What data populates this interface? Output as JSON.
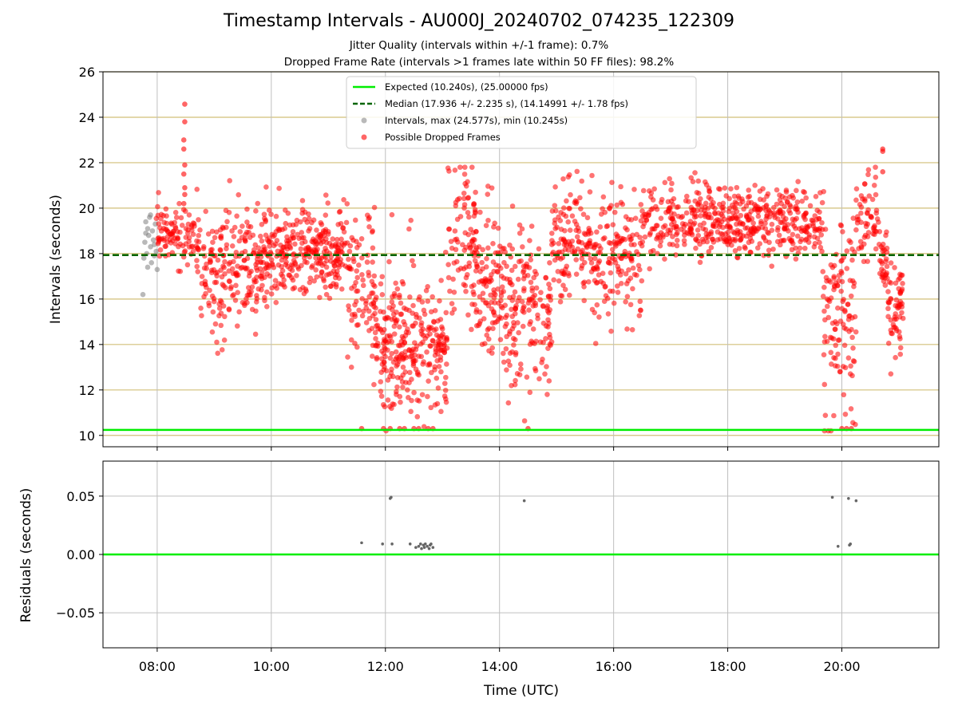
{
  "title": "Timestamp Intervals - AU000J_20240702_074235_122309",
  "subtitle_1": "Jitter Quality (intervals within +/-1 frame): 0.7%",
  "subtitle_2": "Dropped Frame Rate (intervals >1 frames late within 50 FF files): 98.2%",
  "colors": {
    "expected": "#00ee00",
    "median": "#006400",
    "intervals": "#808080",
    "dropped": "#ff0000",
    "hgrid_top": "#d2bf78",
    "grid": "#bfbfbf"
  },
  "chart_data": [
    {
      "type": "scatter",
      "panel": "top",
      "ylabel": "Intervals (seconds)",
      "xlabel": "",
      "ylim": [
        9.5,
        26
      ],
      "xlim": [
        "07:03",
        "21:42"
      ],
      "yticks": [
        "10",
        "12",
        "14",
        "16",
        "18",
        "20",
        "22",
        "24",
        "26"
      ],
      "grid": "horizontal (tan) and vertical (gray)",
      "legend_position": "top-center",
      "legend": [
        "Expected (10.240s), (25.00000 fps)",
        "Median (17.936 +/- 2.235 s), (14.14991 +/- 1.78 fps)",
        "Intervals, max (24.577s), min (10.245s)",
        "Possible Dropped Frames"
      ],
      "expected_y": 10.24,
      "median_y": 17.936,
      "series": [
        {
          "name": "Intervals, max (24.577s), min (10.245s)",
          "points": [
            [
              "07:45",
              16.2
            ],
            [
              "07:46",
              17.8
            ],
            [
              "07:47",
              18.5
            ],
            [
              "07:48",
              19.4
            ],
            [
              "07:49",
              18.0
            ],
            [
              "07:50",
              19.1
            ],
            [
              "07:50",
              17.4
            ],
            [
              "07:51",
              18.8
            ],
            [
              "07:52",
              19.6
            ],
            [
              "07:53",
              18.3
            ],
            [
              "07:54",
              17.6
            ],
            [
              "07:55",
              19.0
            ],
            [
              "07:56",
              18.6
            ],
            [
              "07:57",
              17.9
            ],
            [
              "07:58",
              19.3
            ],
            [
              "07:59",
              18.1
            ],
            [
              "08:00",
              17.3
            ],
            [
              "07:48",
              18.9
            ],
            [
              "07:53",
              19.7
            ],
            [
              "07:57",
              18.4
            ]
          ]
        },
        {
          "name": "Possible Dropped Frames",
          "segments": [
            {
              "t": [
                "07:58",
                "08:22"
              ],
              "mean": 19.0,
              "sd": 0.65,
              "n": 60
            },
            {
              "t": [
                "08:22",
                "08:45"
              ],
              "mean": 18.7,
              "sd": 0.8,
              "n": 50
            },
            {
              "t": [
                "08:45",
                "09:45"
              ],
              "mean": 17.2,
              "sd": 1.3,
              "n": 180
            },
            {
              "t": [
                "09:45",
                "11:20"
              ],
              "mean": 18.1,
              "sd": 1.0,
              "n": 330
            },
            {
              "t": [
                "11:20",
                "11:50"
              ],
              "mean": 16.3,
              "sd": 1.4,
              "n": 90
            },
            {
              "t": [
                "11:50",
                "12:40"
              ],
              "mean": 14.0,
              "sd": 1.6,
              "n": 200
            },
            {
              "t": [
                "12:40",
                "13:05"
              ],
              "mean": 13.8,
              "sd": 1.4,
              "n": 90
            },
            {
              "t": [
                "13:05",
                "13:35"
              ],
              "mean": 18.5,
              "sd": 2.0,
              "n": 90
            },
            {
              "t": [
                "13:35",
                "14:05"
              ],
              "mean": 16.6,
              "sd": 1.6,
              "n": 110
            },
            {
              "t": [
                "14:05",
                "14:55"
              ],
              "mean": 15.6,
              "sd": 1.7,
              "n": 160
            },
            {
              "t": [
                "14:55",
                "15:40"
              ],
              "mean": 18.5,
              "sd": 1.4,
              "n": 140
            },
            {
              "t": [
                "15:40",
                "16:30"
              ],
              "mean": 17.7,
              "sd": 1.5,
              "n": 140
            },
            {
              "t": [
                "16:30",
                "19:40"
              ],
              "mean": 19.4,
              "sd": 0.75,
              "n": 520
            },
            {
              "t": [
                "19:40",
                "20:15"
              ],
              "mean": 15.2,
              "sd": 2.2,
              "n": 120
            },
            {
              "t": [
                "20:15",
                "20:40"
              ],
              "mean": 19.5,
              "sd": 0.9,
              "n": 60
            },
            {
              "t": [
                "20:40",
                "20:48"
              ],
              "mean": 17.6,
              "sd": 0.6,
              "n": 30
            },
            {
              "t": [
                "20:48",
                "21:05"
              ],
              "mean": 15.5,
              "sd": 1.0,
              "n": 60
            }
          ],
          "spikes": [
            [
              "08:29",
              24.577
            ],
            [
              "08:29",
              23.8
            ],
            [
              "08:28",
              23.0
            ],
            [
              "08:28",
              22.6
            ],
            [
              "08:29",
              21.9
            ],
            [
              "08:28",
              21.5
            ],
            [
              "08:29",
              20.9
            ],
            [
              "08:29",
              20.6
            ],
            [
              "08:28",
              20.2
            ],
            [
              "12:15",
              10.3
            ],
            [
              "12:20",
              10.3
            ],
            [
              "12:30",
              10.3
            ],
            [
              "12:35",
              10.3
            ],
            [
              "12:45",
              10.3
            ],
            [
              "12:50",
              10.3
            ],
            [
              "12:05",
              10.3
            ],
            [
              "11:58",
              10.3
            ],
            [
              "20:00",
              10.3
            ],
            [
              "20:05",
              10.3
            ],
            [
              "20:10",
              10.3
            ],
            [
              "14:30",
              10.3
            ],
            [
              "11:35",
              10.3
            ],
            [
              "20:43",
              22.6
            ],
            [
              "20:43",
              22.5
            ],
            [
              "20:43",
              21.6
            ]
          ]
        }
      ]
    },
    {
      "type": "scatter",
      "panel": "bottom",
      "ylabel": "Residuals (seconds)",
      "xlabel": "Time (UTC)",
      "ylim": [
        -0.08,
        0.08
      ],
      "yticks": [
        "−0.05",
        "0.00",
        "0.05"
      ],
      "xticks": [
        "08:00",
        "10:00",
        "12:00",
        "14:00",
        "16:00",
        "18:00",
        "20:00"
      ],
      "zero_line_y": 0.0,
      "points": [
        [
          "11:35",
          0.01
        ],
        [
          "11:57",
          0.009
        ],
        [
          "12:05",
          0.048
        ],
        [
          "12:06",
          0.049
        ],
        [
          "12:07",
          0.009
        ],
        [
          "12:26",
          0.009
        ],
        [
          "12:32",
          0.006
        ],
        [
          "12:35",
          0.007
        ],
        [
          "12:37",
          0.009
        ],
        [
          "12:38",
          0.005
        ],
        [
          "12:40",
          0.008
        ],
        [
          "12:41",
          0.006
        ],
        [
          "12:42",
          0.009
        ],
        [
          "12:44",
          0.007
        ],
        [
          "12:46",
          0.005
        ],
        [
          "12:47",
          0.008
        ],
        [
          "12:48",
          0.009
        ],
        [
          "12:50",
          0.006
        ],
        [
          "14:26",
          0.046
        ],
        [
          "19:50",
          0.049
        ],
        [
          "19:56",
          0.007
        ],
        [
          "20:07",
          0.048
        ],
        [
          "20:08",
          0.008
        ],
        [
          "20:09",
          0.009
        ],
        [
          "20:15",
          0.046
        ]
      ]
    }
  ]
}
